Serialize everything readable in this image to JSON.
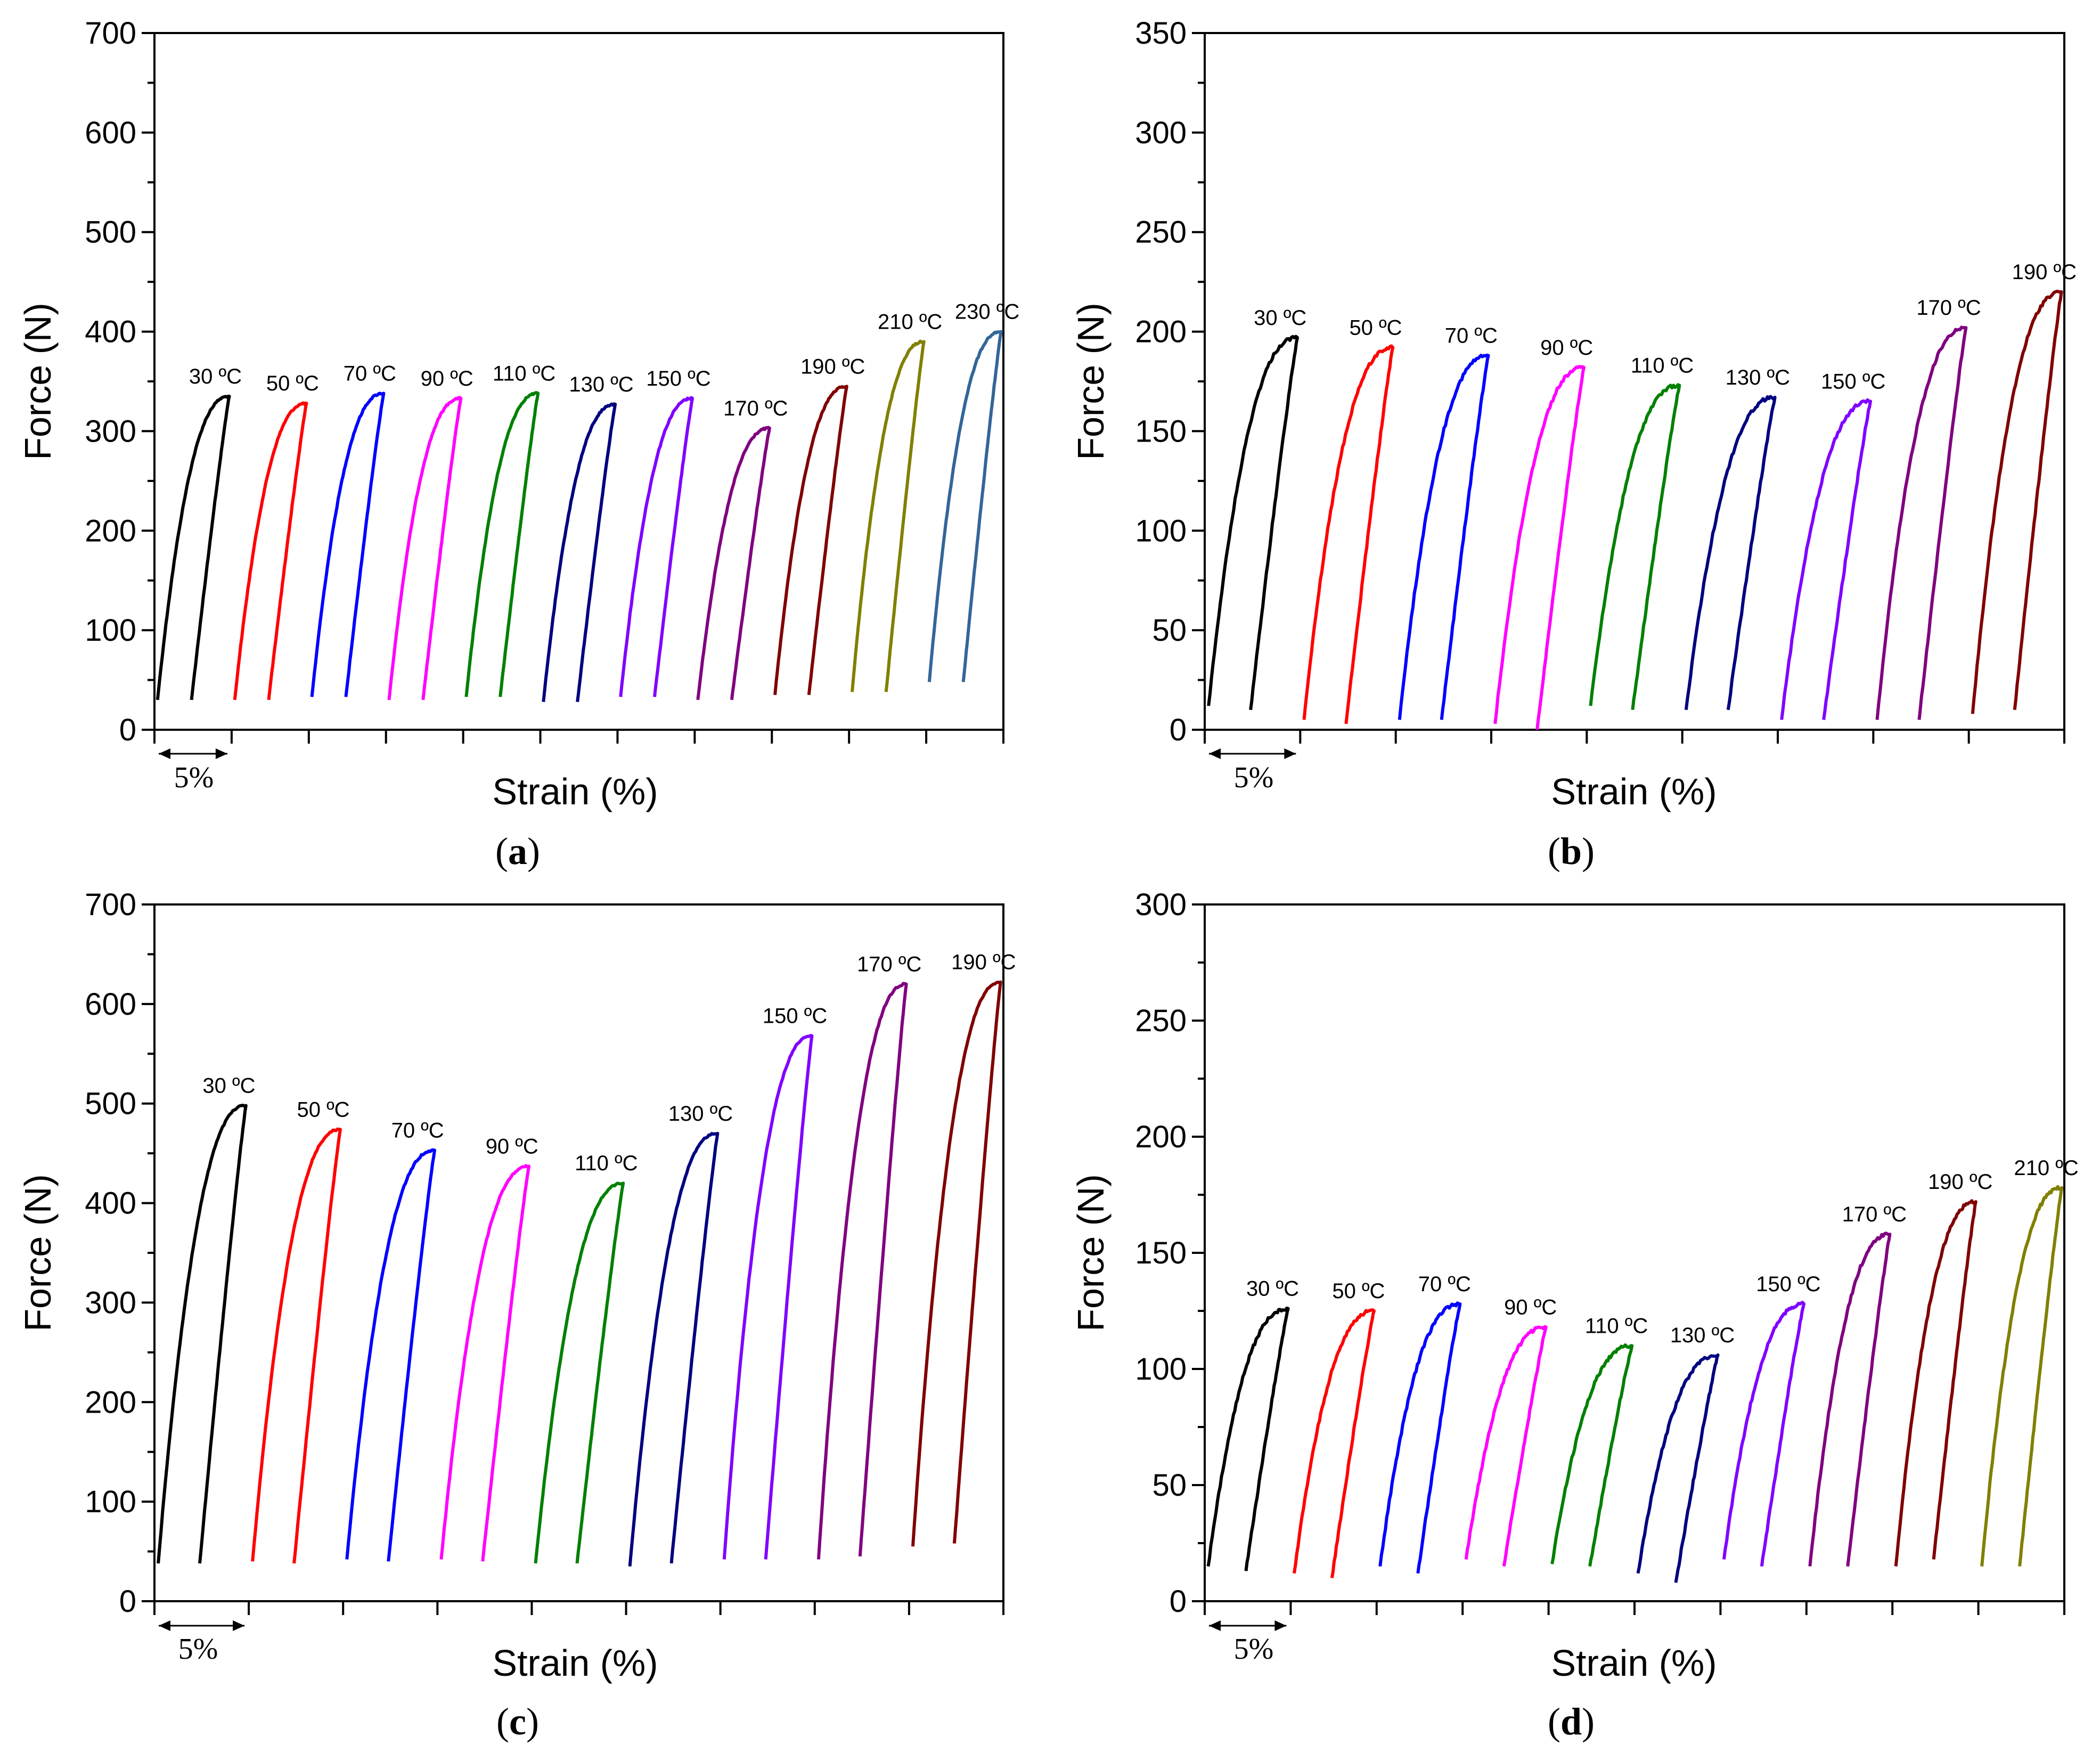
{
  "chart_data": [
    {
      "type": "line",
      "panel_label": "a",
      "xlabel": "Strain (%)",
      "ylabel": "Force (N)",
      "ylim": [
        0,
        700
      ],
      "yticks": [
        0,
        100,
        200,
        300,
        400,
        500,
        600,
        700
      ],
      "scale_bar": "5%",
      "strain_per_segment": 5,
      "grid": false,
      "series": [
        {
          "name": "30 ºC",
          "color": "#000000",
          "f_start": 30,
          "f_peak": 335,
          "f_end": 30
        },
        {
          "name": "50 ºC",
          "color": "#ff0000",
          "f_start": 30,
          "f_peak": 328,
          "f_end": 30
        },
        {
          "name": "70 ºC",
          "color": "#0000ff",
          "f_start": 33,
          "f_peak": 338,
          "f_end": 33
        },
        {
          "name": "90 ºC",
          "color": "#ff00ff",
          "f_start": 30,
          "f_peak": 333,
          "f_end": 30
        },
        {
          "name": "110 ºC",
          "color": "#008000",
          "f_start": 33,
          "f_peak": 338,
          "f_end": 33
        },
        {
          "name": "130 ºC",
          "color": "#000080",
          "f_start": 28,
          "f_peak": 327,
          "f_end": 28
        },
        {
          "name": "150 ºC",
          "color": "#8000ff",
          "f_start": 33,
          "f_peak": 333,
          "f_end": 33
        },
        {
          "name": "170 ºC",
          "color": "#800080",
          "f_start": 30,
          "f_peak": 303,
          "f_end": 30
        },
        {
          "name": "190 ºC",
          "color": "#800000",
          "f_start": 35,
          "f_peak": 345,
          "f_end": 35
        },
        {
          "name": "210 ºC",
          "color": "#808000",
          "f_start": 38,
          "f_peak": 390,
          "f_end": 38
        },
        {
          "name": "230 ºC",
          "color": "#336699",
          "f_start": 48,
          "f_peak": 400,
          "f_end": 48
        }
      ]
    },
    {
      "type": "line",
      "panel_label": "b",
      "xlabel": "Strain (%)",
      "ylabel": "Force (N)",
      "ylim": [
        0,
        350
      ],
      "yticks": [
        0,
        50,
        100,
        150,
        200,
        250,
        300,
        350
      ],
      "scale_bar": "5%",
      "strain_per_segment": 5,
      "grid": false,
      "series": [
        {
          "name": "30 ºC",
          "color": "#000000",
          "f_start": 12,
          "f_peak": 197,
          "f_end": 10
        },
        {
          "name": "50 ºC",
          "color": "#ff0000",
          "f_start": 5,
          "f_peak": 192,
          "f_end": 3
        },
        {
          "name": "70 ºC",
          "color": "#0000ff",
          "f_start": 5,
          "f_peak": 188,
          "f_end": 5
        },
        {
          "name": "90 ºC",
          "color": "#ff00ff",
          "f_start": 3,
          "f_peak": 182,
          "f_end": 0
        },
        {
          "name": "110 ºC",
          "color": "#008000",
          "f_start": 12,
          "f_peak": 173,
          "f_end": 10
        },
        {
          "name": "130 ºC",
          "color": "#000080",
          "f_start": 10,
          "f_peak": 167,
          "f_end": 10
        },
        {
          "name": "150 ºC",
          "color": "#8000ff",
          "f_start": 5,
          "f_peak": 165,
          "f_end": 5
        },
        {
          "name": "170 ºC",
          "color": "#800080",
          "f_start": 5,
          "f_peak": 202,
          "f_end": 5
        },
        {
          "name": "190 ºC",
          "color": "#800000",
          "f_start": 8,
          "f_peak": 220,
          "f_end": 10
        }
      ]
    },
    {
      "type": "line",
      "panel_label": "c",
      "xlabel": "Strain (%)",
      "ylabel": "Force (N)",
      "ylim": [
        0,
        700
      ],
      "yticks": [
        0,
        100,
        200,
        300,
        400,
        500,
        600,
        700
      ],
      "scale_bar": "5%",
      "strain_per_segment": 5,
      "grid": false,
      "series": [
        {
          "name": "30 ºC",
          "color": "#000000",
          "f_start": 38,
          "f_peak": 498,
          "f_end": 38
        },
        {
          "name": "50 ºC",
          "color": "#ff0000",
          "f_start": 40,
          "f_peak": 474,
          "f_end": 38
        },
        {
          "name": "70 ºC",
          "color": "#0000ff",
          "f_start": 42,
          "f_peak": 453,
          "f_end": 40
        },
        {
          "name": "90 ºC",
          "color": "#ff00ff",
          "f_start": 42,
          "f_peak": 437,
          "f_end": 40
        },
        {
          "name": "110 ºC",
          "color": "#008000",
          "f_start": 38,
          "f_peak": 420,
          "f_end": 38
        },
        {
          "name": "130 ºC",
          "color": "#000080",
          "f_start": 35,
          "f_peak": 470,
          "f_end": 38
        },
        {
          "name": "150 ºC",
          "color": "#8000ff",
          "f_start": 42,
          "f_peak": 568,
          "f_end": 42
        },
        {
          "name": "170 ºC",
          "color": "#800080",
          "f_start": 42,
          "f_peak": 620,
          "f_end": 45
        },
        {
          "name": "190 ºC",
          "color": "#800000",
          "f_start": 55,
          "f_peak": 622,
          "f_end": 58
        }
      ]
    },
    {
      "type": "line",
      "panel_label": "d",
      "xlabel": "Strain (%)",
      "ylabel": "Force (N)",
      "ylim": [
        0,
        300
      ],
      "yticks": [
        0,
        50,
        100,
        150,
        200,
        250,
        300
      ],
      "scale_bar": "5%",
      "strain_per_segment": 5,
      "grid": false,
      "series": [
        {
          "name": "30 ºC",
          "color": "#000000",
          "f_start": 15,
          "f_peak": 126,
          "f_end": 13
        },
        {
          "name": "50 ºC",
          "color": "#ff0000",
          "f_start": 12,
          "f_peak": 125,
          "f_end": 10
        },
        {
          "name": "70 ºC",
          "color": "#0000ff",
          "f_start": 15,
          "f_peak": 128,
          "f_end": 12
        },
        {
          "name": "90 ºC",
          "color": "#ff00ff",
          "f_start": 18,
          "f_peak": 118,
          "f_end": 15
        },
        {
          "name": "110 ºC",
          "color": "#008000",
          "f_start": 16,
          "f_peak": 110,
          "f_end": 15
        },
        {
          "name": "130 ºC",
          "color": "#000080",
          "f_start": 12,
          "f_peak": 106,
          "f_end": 8
        },
        {
          "name": "150 ºC",
          "color": "#8000ff",
          "f_start": 18,
          "f_peak": 128,
          "f_end": 15
        },
        {
          "name": "170 ºC",
          "color": "#800080",
          "f_start": 15,
          "f_peak": 158,
          "f_end": 15
        },
        {
          "name": "190 ºC",
          "color": "#800000",
          "f_start": 15,
          "f_peak": 172,
          "f_end": 18
        },
        {
          "name": "210 ºC",
          "color": "#808000",
          "f_start": 15,
          "f_peak": 178,
          "f_end": 15
        }
      ]
    }
  ]
}
